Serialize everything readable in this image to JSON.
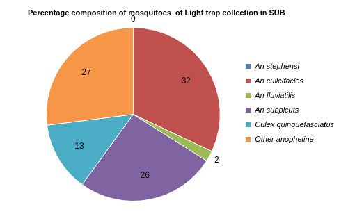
{
  "chart_data": {
    "type": "pie",
    "title": "Percentage composition of mosquitoes  of Light trap collection in SUB",
    "categories": [
      "An stephensi",
      "An culicifacies",
      "An fluviatilis",
      "An subpicuts",
      "Culex quinquefasciatus",
      "Other anopheline"
    ],
    "values": [
      0,
      32,
      2,
      26,
      13,
      27
    ],
    "colors": [
      "#4f81bd",
      "#c0504d",
      "#9bbb59",
      "#8064a2",
      "#4bacc6",
      "#f79646"
    ],
    "data_labels": true,
    "legend": "right"
  }
}
